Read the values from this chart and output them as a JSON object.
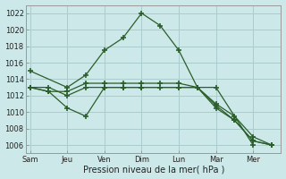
{
  "background_color": "#cce8e8",
  "grid_color": "#aacccc",
  "line_color": "#2a5e2a",
  "marker": "+",
  "marker_size": 5,
  "marker_lw": 1.2,
  "xlabel": "Pression niveau de la mer( hPa )",
  "ylim": [
    1005.0,
    1023.0
  ],
  "yticks": [
    1006,
    1008,
    1010,
    1012,
    1014,
    1016,
    1018,
    1020,
    1022
  ],
  "x_labels": [
    "Sam",
    "Jeu",
    "Ven",
    "Dim",
    "Lun",
    "Mar",
    "Mer"
  ],
  "x_tick_positions": [
    0,
    2,
    4,
    6,
    8,
    10,
    12
  ],
  "xlim": [
    -0.2,
    13.5
  ],
  "series": [
    {
      "x": [
        0,
        2,
        3,
        4,
        5,
        6,
        7,
        8,
        9,
        10,
        12
      ],
      "y": [
        1015.0,
        1013.0,
        1014.5,
        1017.5,
        1019.0,
        1022.0,
        1020.5,
        1017.5,
        1013.0,
        1013.0,
        1006.0
      ]
    },
    {
      "x": [
        0,
        1,
        2,
        3,
        4,
        5,
        6,
        7,
        8,
        9,
        10,
        11,
        12,
        13
      ],
      "y": [
        1013.0,
        1013.0,
        1012.0,
        1013.0,
        1013.0,
        1013.0,
        1013.0,
        1013.0,
        1013.0,
        1013.0,
        1011.0,
        1009.5,
        1007.0,
        1006.0
      ]
    },
    {
      "x": [
        0,
        1,
        2,
        3,
        4,
        5,
        6,
        7,
        8,
        9,
        10,
        11,
        12,
        13
      ],
      "y": [
        1013.0,
        1012.5,
        1012.5,
        1013.5,
        1013.5,
        1013.5,
        1013.5,
        1013.5,
        1013.5,
        1013.0,
        1010.5,
        1009.0,
        1006.5,
        1006.0
      ]
    },
    {
      "x": [
        0,
        1,
        2,
        3,
        4,
        5,
        6,
        8,
        9,
        10,
        11,
        12,
        13
      ],
      "y": [
        1013.0,
        1012.5,
        1010.5,
        1009.5,
        1013.0,
        1013.0,
        1013.0,
        1013.0,
        1013.0,
        1010.8,
        1009.0,
        1006.5,
        1006.0
      ]
    }
  ]
}
